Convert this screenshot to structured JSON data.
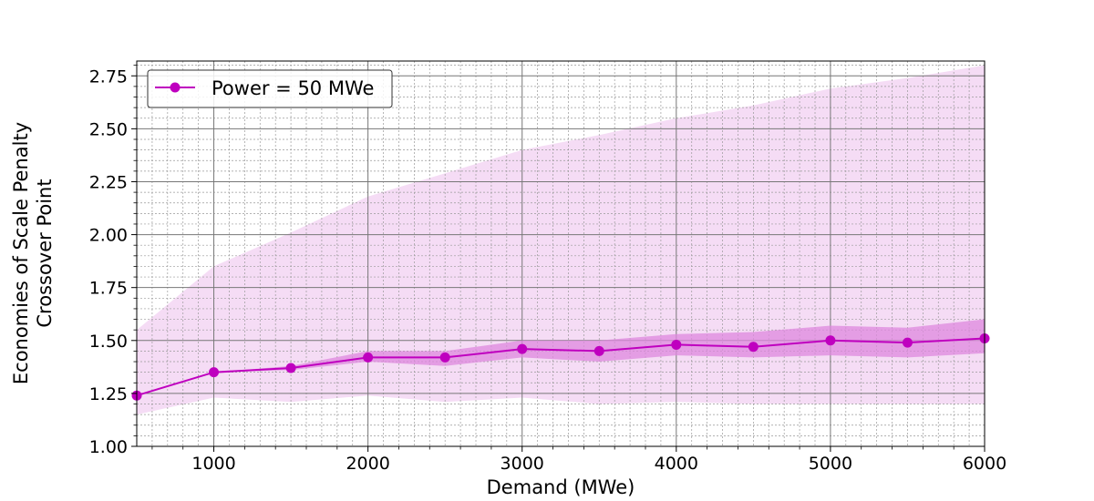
{
  "chart_data": {
    "type": "line",
    "title": "",
    "xlabel": "Demand (MWe)",
    "ylabel_lines": [
      "Economies of Scale Penalty",
      "Crossover Point"
    ],
    "xlim": [
      500,
      6000
    ],
    "ylim": [
      1.0,
      2.82
    ],
    "x_ticks": [
      1000,
      2000,
      3000,
      4000,
      5000,
      6000
    ],
    "y_ticks": [
      1.0,
      1.25,
      1.5,
      1.75,
      2.0,
      2.25,
      2.5,
      2.75
    ],
    "grid": true,
    "legend_position": "top-left",
    "colors": {
      "line": "#bf00bf",
      "inner_band": "#dd88dd",
      "outer_band": "#f5dcf5",
      "grid_major": "#777777",
      "grid_minor": "#999999"
    },
    "series": [
      {
        "name": "Power = 50 MWe",
        "x": [
          500,
          1000,
          1500,
          2000,
          2500,
          3000,
          3500,
          4000,
          4500,
          5000,
          5500,
          6000
        ],
        "y": [
          1.24,
          1.35,
          1.37,
          1.42,
          1.42,
          1.46,
          1.45,
          1.48,
          1.47,
          1.5,
          1.49,
          1.51
        ],
        "inner_lower": [
          1.24,
          1.35,
          1.36,
          1.4,
          1.38,
          1.42,
          1.4,
          1.43,
          1.42,
          1.43,
          1.42,
          1.44
        ],
        "inner_upper": [
          1.24,
          1.35,
          1.38,
          1.45,
          1.45,
          1.5,
          1.5,
          1.53,
          1.54,
          1.57,
          1.56,
          1.6
        ],
        "outer_lower": [
          1.15,
          1.23,
          1.21,
          1.24,
          1.21,
          1.23,
          1.2,
          1.21,
          1.2,
          1.2,
          1.2,
          1.2
        ],
        "outer_upper": [
          1.55,
          1.85,
          2.01,
          2.18,
          2.29,
          2.4,
          2.47,
          2.55,
          2.61,
          2.69,
          2.74,
          2.8
        ]
      }
    ]
  }
}
